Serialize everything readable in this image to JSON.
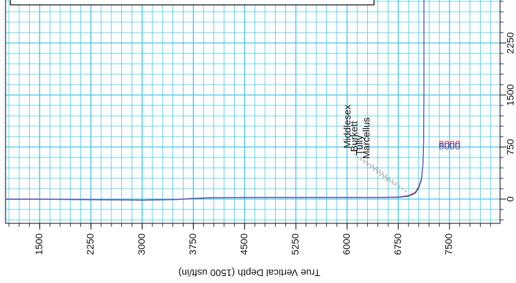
{
  "chart_data": {
    "type": "line",
    "x_label": "True Vertical Depth (1500 usft/in)",
    "x": [
      1000,
      1500,
      2000,
      2500,
      3000,
      3500,
      3750,
      4000,
      4500,
      5000,
      5500,
      6000,
      6500,
      6750,
      6900,
      7000,
      7050,
      7090,
      7110,
      7120,
      7125,
      7125
    ],
    "series": [
      {
        "color": "#c83a3a",
        "values": [
          0,
          0,
          -5,
          -10,
          -15,
          -5,
          10,
          20,
          25,
          25,
          25,
          25,
          25,
          30,
          50,
          100,
          180,
          300,
          500,
          800,
          1500,
          2870
        ]
      },
      {
        "color": "#3a55c0",
        "values": [
          -3,
          -3,
          -8,
          -12,
          -17,
          -8,
          7,
          17,
          22,
          22,
          22,
          22,
          22,
          25,
          40,
          85,
          160,
          280,
          480,
          780,
          1480,
          2870
        ]
      }
    ],
    "annotations": [
      {
        "text": "Middlesex",
        "x": 6600,
        "y": 250
      },
      {
        "text": "Burkett",
        "x": 6700,
        "y": 200
      },
      {
        "text": "Tully",
        "x": 6780,
        "y": 150
      },
      {
        "text": "Marcellus",
        "x": 6880,
        "y": 100
      }
    ],
    "point_labels": [
      {
        "text": "8000",
        "x": 7500,
        "y": 780,
        "color": "#c83a3a"
      },
      {
        "text": "8000",
        "x": 7500,
        "y": 750,
        "color": "#3a55c0"
      }
    ],
    "xlim": [
      1000,
      8240
    ],
    "ylim": [
      -350,
      2870
    ],
    "xticks": [
      1500,
      2250,
      3000,
      3750,
      4500,
      5250,
      6000,
      6750,
      7500
    ],
    "yticks": [
      0,
      750,
      1500,
      2250
    ],
    "grid": true,
    "grid_color": "#3cc4e6"
  }
}
